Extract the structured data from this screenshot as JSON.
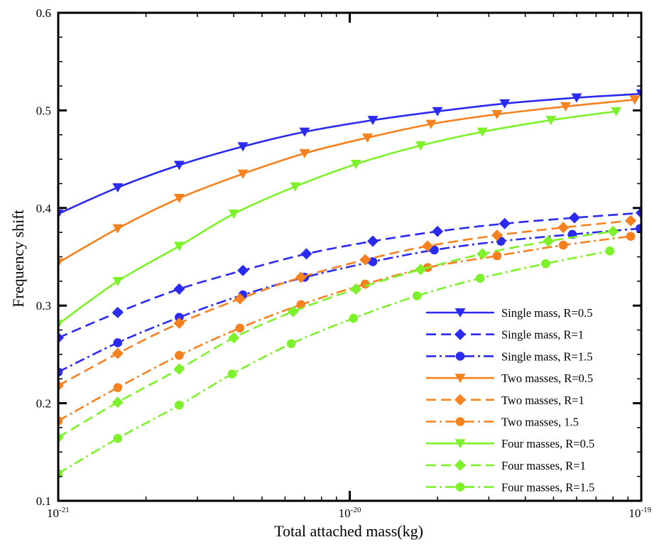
{
  "chart_data": {
    "type": "line",
    "xlabel": "Total attached mass(kg)",
    "ylabel": "Frequency shift",
    "x_scale": "log",
    "xlim": [
      1e-21,
      1e-19
    ],
    "ylim": [
      0.1,
      0.6
    ],
    "x_ticks": [
      {
        "value": 1e-21,
        "base": "10",
        "exp": "-21"
      },
      {
        "value": 1e-20,
        "base": "10",
        "exp": "-20"
      },
      {
        "value": 1e-19,
        "base": "10",
        "exp": "-19"
      }
    ],
    "y_ticks": [
      "0.1",
      "0.2",
      "0.3",
      "0.4",
      "0.5",
      "0.6"
    ],
    "legend_position": "bottom-right",
    "series": [
      {
        "name": "Single mass, R=0.5",
        "color": "#2b2bf0",
        "dash": "solid",
        "marker": "triangle-down",
        "x": [
          1e-21,
          1.6e-21,
          2.6e-21,
          4.3e-21,
          7e-21,
          1.2e-20,
          2e-20,
          3.4e-20,
          6e-20,
          1e-19
        ],
        "y": [
          0.394,
          0.421,
          0.444,
          0.463,
          0.478,
          0.49,
          0.499,
          0.507,
          0.513,
          0.517
        ]
      },
      {
        "name": "Single mass, R=1",
        "color": "#2b2bf0",
        "dash": "dash",
        "marker": "diamond",
        "x": [
          1e-21,
          1.6e-21,
          2.6e-21,
          4.3e-21,
          7.1e-21,
          1.2e-20,
          2e-20,
          3.4e-20,
          5.9e-20,
          1e-19
        ],
        "y": [
          0.267,
          0.293,
          0.317,
          0.336,
          0.353,
          0.366,
          0.376,
          0.384,
          0.39,
          0.395
        ]
      },
      {
        "name": "Single mass, R=1.5",
        "color": "#2b2bf0",
        "dash": "dashdot",
        "marker": "circle",
        "x": [
          1e-21,
          1.6e-21,
          2.6e-21,
          4.3e-21,
          7e-21,
          1.2e-20,
          1.95e-20,
          3.3e-20,
          5.8e-20,
          9.9e-20
        ],
        "y": [
          0.232,
          0.262,
          0.288,
          0.311,
          0.329,
          0.345,
          0.357,
          0.366,
          0.373,
          0.379
        ]
      },
      {
        "name": "Two masses, R=0.5",
        "color": "#f5821f",
        "dash": "solid",
        "marker": "triangle-down",
        "x": [
          1e-21,
          1.6e-21,
          2.6e-21,
          4.3e-21,
          7e-21,
          1.15e-20,
          1.9e-20,
          3.2e-20,
          5.5e-20,
          9.5e-20
        ],
        "y": [
          0.344,
          0.379,
          0.41,
          0.435,
          0.456,
          0.472,
          0.486,
          0.496,
          0.504,
          0.511
        ]
      },
      {
        "name": "Two masses, R=1",
        "color": "#f5821f",
        "dash": "dash",
        "marker": "diamond",
        "x": [
          1e-21,
          1.6e-21,
          2.6e-21,
          4.2e-21,
          6.8e-21,
          1.13e-20,
          1.85e-20,
          3.2e-20,
          5.4e-20,
          9.2e-20
        ],
        "y": [
          0.218,
          0.251,
          0.282,
          0.307,
          0.329,
          0.347,
          0.361,
          0.372,
          0.38,
          0.387
        ]
      },
      {
        "name": "Two masses, 1.5",
        "color": "#f5821f",
        "dash": "dashdot",
        "marker": "circle",
        "x": [
          1e-21,
          1.6e-21,
          2.6e-21,
          4.2e-21,
          6.8e-21,
          1.13e-20,
          1.85e-20,
          3.2e-20,
          5.4e-20,
          9.2e-20
        ],
        "y": [
          0.182,
          0.216,
          0.249,
          0.277,
          0.301,
          0.322,
          0.339,
          0.351,
          0.362,
          0.371
        ]
      },
      {
        "name": "Four masses, R=0.5",
        "color": "#7df22a",
        "dash": "solid",
        "marker": "triangle-down",
        "x": [
          1e-21,
          1.6e-21,
          2.6e-21,
          4e-21,
          6.5e-21,
          1.05e-20,
          1.75e-20,
          2.85e-20,
          4.9e-20,
          8.2e-20
        ],
        "y": [
          0.281,
          0.325,
          0.361,
          0.394,
          0.422,
          0.445,
          0.464,
          0.478,
          0.49,
          0.499
        ]
      },
      {
        "name": "Four masses, R=1",
        "color": "#7df22a",
        "dash": "dash",
        "marker": "diamond",
        "x": [
          1e-21,
          1.6e-21,
          2.6e-21,
          4e-21,
          6.4e-21,
          1.05e-20,
          1.75e-20,
          2.85e-20,
          4.8e-20,
          8e-20
        ],
        "y": [
          0.165,
          0.201,
          0.235,
          0.267,
          0.294,
          0.317,
          0.337,
          0.353,
          0.366,
          0.376
        ]
      },
      {
        "name": "Four masses, R=1.5",
        "color": "#7df22a",
        "dash": "dashdot",
        "marker": "circle",
        "x": [
          1e-21,
          1.6e-21,
          2.6e-21,
          3.95e-21,
          6.3e-21,
          1.03e-20,
          1.7e-20,
          2.8e-20,
          4.7e-20,
          7.8e-20
        ],
        "y": [
          0.128,
          0.164,
          0.198,
          0.23,
          0.261,
          0.287,
          0.31,
          0.328,
          0.343,
          0.356
        ]
      }
    ]
  }
}
